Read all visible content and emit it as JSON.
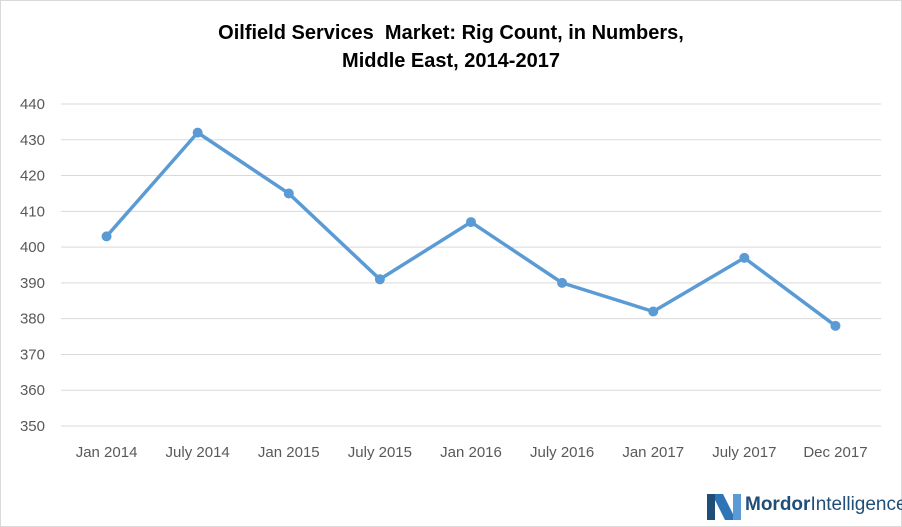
{
  "chart_data": {
    "type": "line",
    "title_line1": "Oilfield Services  Market: Rig Count, in Numbers,",
    "title_line2": "Middle East, 2014-2017",
    "xlabel": "",
    "ylabel": "",
    "categories": [
      "Jan 2014",
      "July 2014",
      "Jan 2015",
      "July 2015",
      "Jan 2016",
      "July 2016",
      "Jan 2017",
      "July 2017",
      "Dec 2017"
    ],
    "series": [
      {
        "values": [
          403,
          432,
          415,
          391,
          407,
          390,
          382,
          397,
          378
        ]
      }
    ],
    "ylim": [
      350,
      440
    ],
    "yticks": [
      350,
      360,
      370,
      380,
      390,
      400,
      410,
      420,
      430,
      440
    ],
    "grid": true,
    "line_color": "#5b9bd5",
    "grid_color": "#d9d9d9"
  },
  "logo": {
    "word1": "Mordor",
    "word2": "Intelligence",
    "color": "#1f4e79",
    "accent": "#2e75b6"
  }
}
